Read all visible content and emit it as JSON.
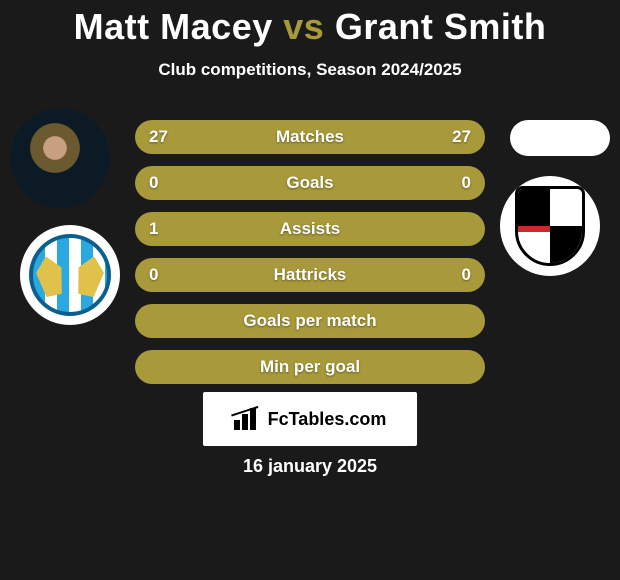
{
  "title": {
    "player1": "Matt Macey",
    "vs": "vs",
    "player2": "Grant Smith",
    "player1_color": "#ffffff",
    "vs_color": "#a89a3a",
    "player2_color": "#ffffff",
    "fontsize": 36
  },
  "subtitle": "Club competitions, Season 2024/2025",
  "bars": {
    "bar_color": "#a89a3a",
    "text_color": "#ffffff",
    "height": 34,
    "radius": 17,
    "gap": 12,
    "fontsize": 17,
    "items": [
      {
        "label": "Matches",
        "left": "27",
        "right": "27"
      },
      {
        "label": "Goals",
        "left": "0",
        "right": "0"
      },
      {
        "label": "Assists",
        "left": "1",
        "right": ""
      },
      {
        "label": "Hattricks",
        "left": "0",
        "right": "0"
      },
      {
        "label": "Goals per match",
        "left": "",
        "right": ""
      },
      {
        "label": "Min per goal",
        "left": "",
        "right": ""
      }
    ]
  },
  "badges": {
    "left_name": "colchester-united-badge",
    "right_name": "bromley-badge"
  },
  "fctables": {
    "text": "FcTables.com",
    "box_bg": "#ffffff",
    "text_color": "#000000"
  },
  "date": "16 january 2025",
  "background_color": "#1a1a1a"
}
